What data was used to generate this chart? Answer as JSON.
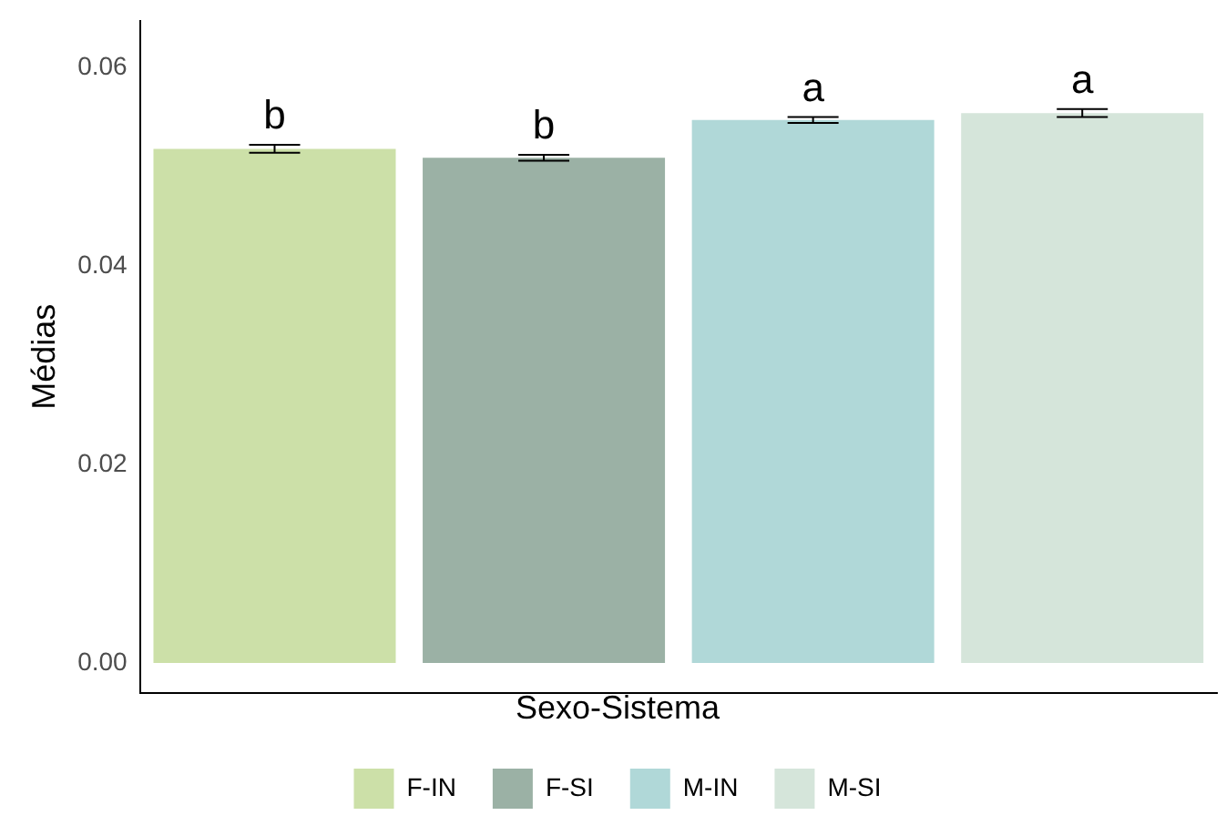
{
  "chart_data": {
    "type": "bar",
    "ylabel": "Médias",
    "legend_title": "Sexo-Sistema",
    "legend": "bottom",
    "grid": false,
    "stacked": true,
    "tick_labels": "y",
    "categories": [
      null,
      null,
      null,
      null
    ],
    "ylim": [
      -0.003,
      0.0647
    ],
    "yticks": [
      {
        "value": 0,
        "label": "0.00"
      },
      {
        "value": 0.02,
        "label": "0.02"
      },
      {
        "value": 0.04,
        "label": "0.04"
      },
      {
        "value": 0.06,
        "label": "0.06"
      }
    ],
    "series": [
      {
        "name": "F-IN",
        "color": "#cce0a8",
        "values": [
          0.0518,
          null,
          null,
          null
        ],
        "errors": [
          0.0004,
          null,
          null,
          null
        ],
        "value_labels": [
          "b",
          null,
          null,
          null
        ]
      },
      {
        "name": "F-SI",
        "color": "#9bb1a5",
        "values": [
          null,
          0.0509,
          null,
          null
        ],
        "errors": [
          null,
          0.0003,
          null,
          null
        ],
        "value_labels": [
          null,
          "b",
          null,
          null
        ]
      },
      {
        "name": "M-IN",
        "color": "#b0d8d8",
        "values": [
          null,
          null,
          0.0547,
          null
        ],
        "errors": [
          null,
          null,
          0.0003,
          null
        ],
        "value_labels": [
          null,
          null,
          "a",
          null
        ]
      },
      {
        "name": "M-SI",
        "color": "#d5e5da",
        "values": [
          null,
          null,
          null,
          0.0554
        ],
        "errors": [
          null,
          null,
          null,
          0.0004
        ],
        "value_labels": [
          null,
          null,
          null,
          "a"
        ]
      }
    ]
  }
}
